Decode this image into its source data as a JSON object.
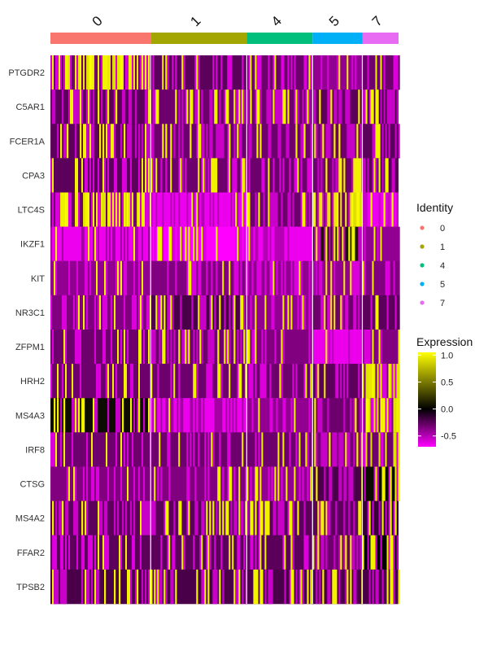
{
  "chart_data": {
    "type": "heatmap",
    "genes": [
      "PTGDR2",
      "C5AR1",
      "FCER1A",
      "CPA3",
      "LTC4S",
      "IKZF1",
      "KIT",
      "NR3C1",
      "ZFPM1",
      "HRH2",
      "MS4A3",
      "IRF8",
      "CTSG",
      "MS4A2",
      "FFAR2",
      "TPSB2"
    ],
    "clusters": [
      {
        "label": "0",
        "color": "#F8766D",
        "fraction": 0.288
      },
      {
        "label": "1",
        "color": "#A3A500",
        "fraction": 0.276
      },
      {
        "label": "4",
        "color": "#00BF7D",
        "fraction": 0.189
      },
      {
        "label": "5",
        "color": "#00B0F6",
        "fraction": 0.143
      },
      {
        "label": "7",
        "color": "#E76BF3",
        "fraction": 0.104
      }
    ],
    "expression_profile": {
      "PTGDR2": [
        0.25,
        -0.25,
        -0.3,
        -0.4,
        -0.3
      ],
      "C5AR1": [
        -0.15,
        -0.2,
        -0.2,
        -0.15,
        -0.1
      ],
      "FCER1A": [
        -0.15,
        -0.2,
        -0.2,
        -0.2,
        -0.15
      ],
      "CPA3": [
        -0.25,
        -0.3,
        -0.3,
        -0.2,
        -0.15
      ],
      "LTC4S": [
        0.35,
        -0.5,
        -0.2,
        0.6,
        -0.55
      ],
      "IKZF1": [
        -0.45,
        -0.6,
        -0.5,
        0.2,
        -0.4
      ],
      "KIT": [
        -0.4,
        -0.35,
        -0.4,
        -0.4,
        -0.35
      ],
      "NR3C1": [
        -0.35,
        -0.1,
        -0.4,
        -0.3,
        -0.25
      ],
      "ZFPM1": [
        -0.3,
        -0.2,
        -0.35,
        -0.5,
        -0.35
      ],
      "HRH2": [
        -0.3,
        -0.3,
        -0.3,
        -0.25,
        0.75
      ],
      "MS4A3": [
        0.15,
        -0.45,
        -0.4,
        -0.2,
        0.55
      ],
      "IRF8": [
        -0.3,
        -0.3,
        -0.3,
        -0.2,
        0.3
      ],
      "CTSG": [
        -0.35,
        -0.35,
        -0.4,
        -0.1,
        0.15
      ],
      "MS4A2": [
        -0.15,
        -0.15,
        -0.15,
        -0.15,
        -0.05
      ],
      "FFAR2": [
        -0.25,
        -0.25,
        -0.25,
        -0.2,
        0.1
      ],
      "TPSB2": [
        -0.1,
        -0.1,
        -0.1,
        -0.1,
        -0.1
      ]
    },
    "identity_legend": {
      "title": "Identity",
      "entries": [
        {
          "label": "0",
          "color": "#F8766D"
        },
        {
          "label": "1",
          "color": "#A3A500"
        },
        {
          "label": "4",
          "color": "#00BF7D"
        },
        {
          "label": "5",
          "color": "#00B0F6"
        },
        {
          "label": "7",
          "color": "#E76BF3"
        }
      ]
    },
    "expression_legend": {
      "title": "Expression",
      "range": [
        -0.7,
        1.05
      ],
      "ticks": [
        {
          "value": 1.0,
          "label": "1.0"
        },
        {
          "value": 0.5,
          "label": "0.5"
        },
        {
          "value": 0.0,
          "label": "0.0"
        },
        {
          "value": -0.5,
          "label": "-0.5"
        }
      ],
      "colors": {
        "low": "#FF00FF",
        "mid": "#000000",
        "high": "#FFFF00"
      }
    },
    "legend_position": "right"
  }
}
